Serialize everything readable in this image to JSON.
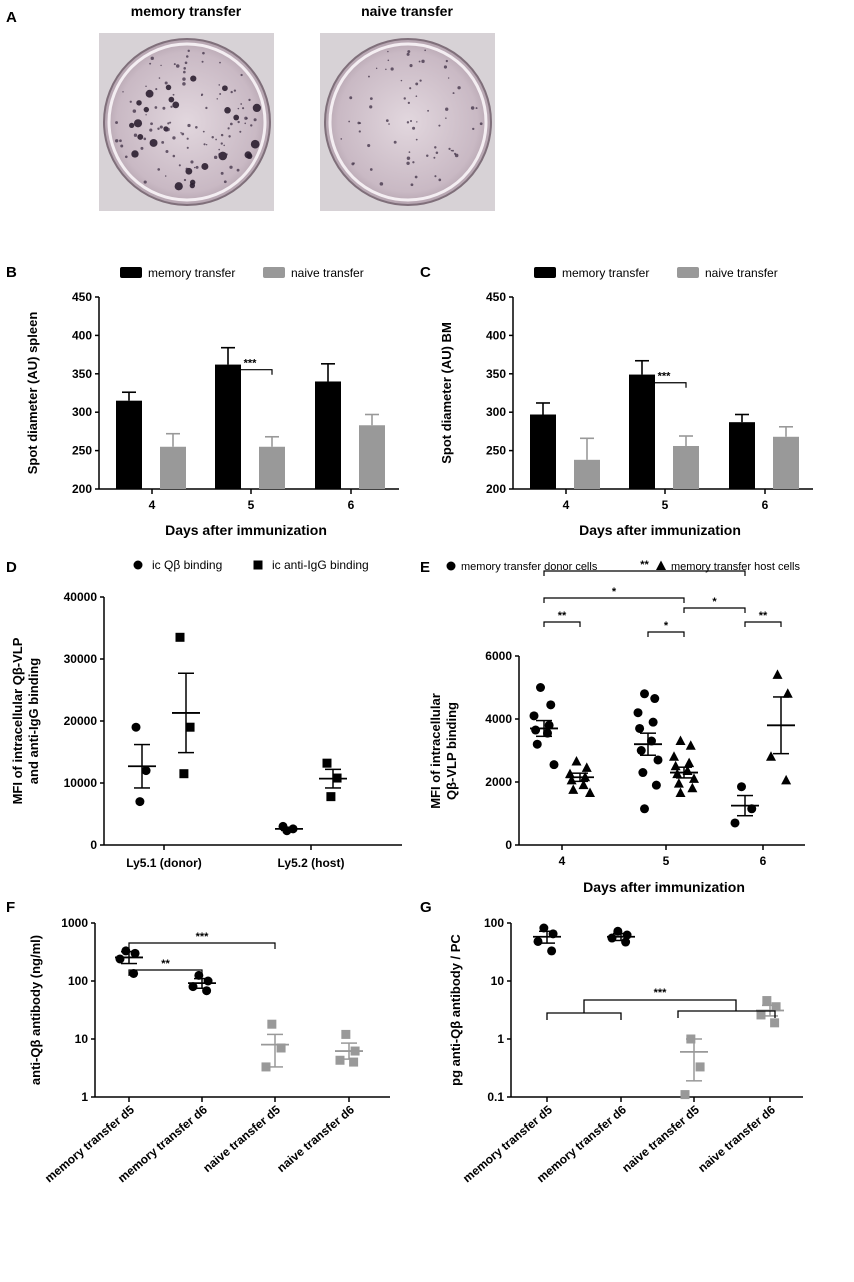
{
  "chart_data": [
    {
      "panel": "A",
      "type": "image",
      "images": [
        {
          "title": "memory transfer",
          "spots": "many"
        },
        {
          "title": "naive transfer",
          "spots": "few"
        }
      ]
    },
    {
      "panel": "B",
      "type": "bar",
      "ylabel": "Spot diameter (AU) spleen",
      "xlabel": "Days after immunization",
      "ylim": [
        200,
        450
      ],
      "yticks": [
        200,
        250,
        300,
        350,
        400,
        450
      ],
      "categories": [
        "4",
        "5",
        "6"
      ],
      "series": [
        {
          "name": "memory transfer",
          "color": "#000000",
          "values": [
            315,
            362,
            340
          ],
          "errors": [
            11,
            22,
            23
          ]
        },
        {
          "name": "naive transfer",
          "color": "#999999",
          "values": [
            255,
            255,
            283
          ],
          "errors": [
            17,
            13,
            14
          ]
        }
      ],
      "annotations": [
        {
          "label": "***",
          "category": "5"
        }
      ]
    },
    {
      "panel": "C",
      "type": "bar",
      "ylabel": "Spot diameter (AU) BM",
      "xlabel": "Days after immunization",
      "ylim": [
        200,
        450
      ],
      "yticks": [
        200,
        250,
        300,
        350,
        400,
        450
      ],
      "categories": [
        "4",
        "5",
        "6"
      ],
      "series": [
        {
          "name": "memory transfer",
          "color": "#000000",
          "values": [
            297,
            349,
            287
          ],
          "errors": [
            15,
            18,
            10
          ]
        },
        {
          "name": "naive transfer",
          "color": "#999999",
          "values": [
            238,
            256,
            268
          ],
          "errors": [
            28,
            13,
            13
          ]
        }
      ],
      "annotations": [
        {
          "label": "***",
          "category": "5"
        }
      ]
    },
    {
      "panel": "D",
      "type": "scatter",
      "ylabel_lines": [
        "MFI of intracellular Qβ-VLP",
        "and anti-IgG binding"
      ],
      "ylim": [
        0,
        40000
      ],
      "yticks": [
        0,
        10000,
        20000,
        30000,
        40000
      ],
      "categories": [
        "Ly5.1 (donor)",
        "Ly5.2 (host)"
      ],
      "legend": [
        {
          "name": "ic Qβ binding",
          "marker": "circle"
        },
        {
          "name": "ic anti-IgG binding",
          "marker": "square"
        }
      ],
      "groups": [
        {
          "category": "Ly5.1 (donor)",
          "marker": "circle",
          "points": [
            7000,
            12000,
            19000
          ],
          "mean": 12700,
          "sem": 3500
        },
        {
          "category": "Ly5.1 (donor)",
          "marker": "square",
          "points": [
            11500,
            19000,
            33500
          ],
          "mean": 21300,
          "sem": 6400
        },
        {
          "category": "Ly5.2 (host)",
          "marker": "circle",
          "points": [
            2300,
            2600,
            3000
          ],
          "mean": 2600,
          "sem": 250
        },
        {
          "category": "Ly5.2 (host)",
          "marker": "square",
          "points": [
            7800,
            10800,
            13200
          ],
          "mean": 10700,
          "sem": 1500
        }
      ]
    },
    {
      "panel": "E",
      "type": "scatter",
      "ylabel_lines": [
        "MFI of intracellular",
        "Qβ-VLP binding"
      ],
      "xlabel": "Days after immunization",
      "ylim": [
        0,
        6000
      ],
      "yticks": [
        0,
        2000,
        4000,
        6000
      ],
      "categories": [
        "4",
        "5",
        "6"
      ],
      "legend": [
        {
          "name": "memory transfer donor cells",
          "marker": "circle"
        },
        {
          "name": "memory transfer host cells",
          "marker": "triangle"
        }
      ],
      "groups": [
        {
          "category": "4",
          "marker": "circle",
          "points": [
            5000,
            4450,
            4100,
            3800,
            3650,
            3550,
            3200,
            2550
          ],
          "mean": 3700,
          "sem": 250
        },
        {
          "category": "4",
          "marker": "triangle",
          "points": [
            2650,
            2450,
            2250,
            2150,
            2050,
            1900,
            1750,
            1650
          ],
          "mean": 2150,
          "sem": 130
        },
        {
          "category": "5",
          "marker": "circle",
          "points": [
            4800,
            4650,
            4200,
            3900,
            3700,
            3300,
            3000,
            2700,
            2300,
            1900,
            1150
          ],
          "mean": 3200,
          "sem": 350
        },
        {
          "category": "5",
          "marker": "triangle",
          "points": [
            3300,
            3150,
            2800,
            2600,
            2500,
            2350,
            2250,
            2100,
            1950,
            1800,
            1650
          ],
          "mean": 2300,
          "sem": 170
        },
        {
          "category": "6",
          "marker": "circle",
          "points": [
            1850,
            1150,
            700
          ],
          "mean": 1250,
          "sem": 320
        },
        {
          "category": "6",
          "marker": "triangle",
          "points": [
            5400,
            4800,
            2800,
            2050
          ],
          "mean": 3800,
          "sem": 900
        }
      ],
      "annotations": [
        {
          "label": "**",
          "between": [
            "4 donor",
            "4 host"
          ]
        },
        {
          "label": "*",
          "between": [
            "5 donor",
            "5 host"
          ]
        },
        {
          "label": "**",
          "between": [
            "6 donor",
            "6 host"
          ]
        },
        {
          "label": "*",
          "between": [
            "4 donor",
            "5 host"
          ]
        },
        {
          "label": "*",
          "between": [
            "5 host",
            "6 donor"
          ]
        },
        {
          "label": "**",
          "between": [
            "4 donor",
            "6 donor"
          ]
        }
      ]
    },
    {
      "panel": "F",
      "type": "scatter",
      "scale": "log",
      "ylabel": "anti-Qβ antibody (ng/ml)",
      "ylim": [
        1,
        1000
      ],
      "yticks": [
        1,
        10,
        100,
        1000
      ],
      "categories": [
        "memory transfer d5",
        "memory transfer d6",
        "naive transfer d5",
        "naive transfer d6"
      ],
      "groups": [
        {
          "category": "memory transfer d5",
          "color": "#000000",
          "points": [
            330,
            300,
            240,
            135
          ],
          "mean": 255,
          "sem_range": [
            200,
            320
          ]
        },
        {
          "category": "memory transfer d6",
          "color": "#000000",
          "points": [
            125,
            100,
            80,
            68
          ],
          "mean": 92,
          "sem_range": [
            75,
            110
          ]
        },
        {
          "category": "naive transfer d5",
          "color": "#999999",
          "points": [
            18,
            7,
            3.3
          ],
          "mean": 8,
          "sem_range": [
            3.3,
            12
          ]
        },
        {
          "category": "naive transfer d6",
          "color": "#999999",
          "points": [
            12,
            6.2,
            4.3,
            4
          ],
          "mean": 6.2,
          "sem_range": [
            4.5,
            8.5
          ]
        }
      ],
      "annotations": [
        {
          "label": "**",
          "between": [
            "memory transfer d5",
            "memory transfer d6"
          ]
        },
        {
          "label": "***",
          "between": [
            "memory transfer d5",
            "naive transfer d5"
          ]
        }
      ]
    },
    {
      "panel": "G",
      "type": "scatter",
      "scale": "log",
      "ylabel": "pg anti-Qβ antibody / PC",
      "ylim": [
        0.1,
        100
      ],
      "yticks": [
        0.1,
        1,
        10,
        100
      ],
      "tick_labels": [
        "0.1",
        "1",
        "10",
        "100"
      ],
      "categories": [
        "memory transfer d5",
        "memory transfer d6",
        "naive transfer d5",
        "naive transfer d6"
      ],
      "groups": [
        {
          "category": "memory transfer d5",
          "color": "#000000",
          "points": [
            82,
            65,
            48,
            33
          ],
          "mean": 58,
          "sem_range": [
            45,
            72
          ]
        },
        {
          "category": "memory transfer d6",
          "color": "#000000",
          "points": [
            72,
            62,
            55,
            47
          ],
          "mean": 58,
          "sem_range": [
            50,
            66
          ]
        },
        {
          "category": "naive transfer d5",
          "color": "#999999",
          "points": [
            1.0,
            0.33,
            0.11
          ],
          "mean": 0.6,
          "sem_range": [
            0.19,
            1.0
          ]
        },
        {
          "category": "naive transfer d6",
          "color": "#999999",
          "points": [
            4.6,
            3.6,
            2.6,
            1.9
          ],
          "mean": 3.1,
          "sem_range": [
            2.5,
            3.8
          ]
        }
      ],
      "annotations": [
        {
          "label": "***",
          "between": [
            "memory transfer",
            "naive transfer"
          ]
        }
      ]
    }
  ],
  "panel_letters": [
    "A",
    "B",
    "C",
    "D",
    "E",
    "F",
    "G"
  ]
}
